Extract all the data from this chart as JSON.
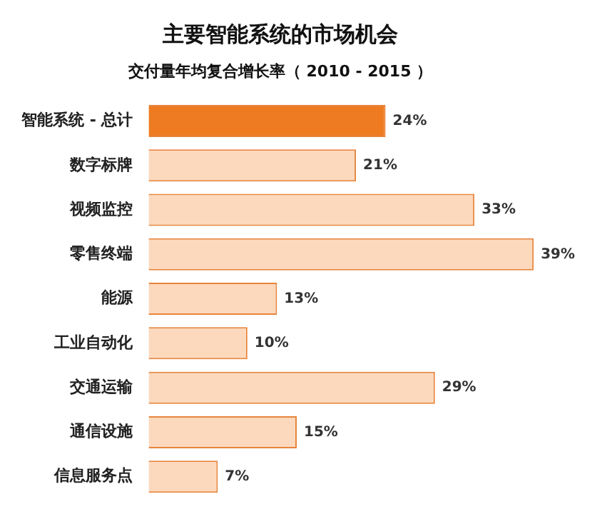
{
  "chart_data": {
    "type": "bar",
    "orientation": "horizontal",
    "title": "主要智能系统的市场机会",
    "subtitle": "交付量年均复合增长率（ 2010 - 2015 ）",
    "categories": [
      "智能系统 - 总计",
      "数字标牌",
      "视频监控",
      "零售终端",
      "能源",
      "工业自动化",
      "交通运输",
      "通信设施",
      "信息服务点"
    ],
    "values": [
      24,
      21,
      33,
      39,
      13,
      10,
      29,
      15,
      7
    ],
    "value_labels": [
      "24%",
      "21%",
      "33%",
      "39%",
      "13%",
      "10%",
      "29%",
      "15%",
      "7%"
    ],
    "colors": [
      "#ee7b22",
      "#fcd9bd",
      "#fcd9bd",
      "#fcd9bd",
      "#fcd9bd",
      "#fcd9bd",
      "#fcd9bd",
      "#fcd9bd",
      "#fcd9bd"
    ],
    "legend": false
  }
}
